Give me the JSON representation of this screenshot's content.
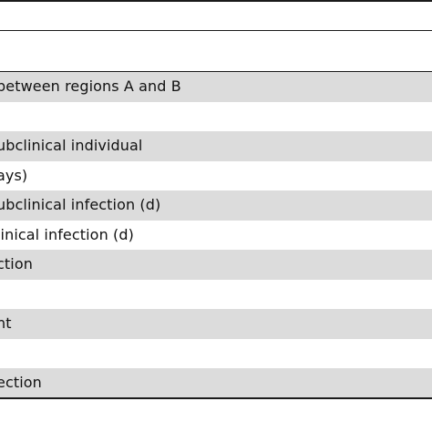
{
  "table": {
    "rows": [
      {
        "text": "between regions A and B",
        "shaded": true
      },
      {
        "text": "",
        "shaded": false
      },
      {
        "text": "ubclinical individual",
        "shaded": true
      },
      {
        "text": "ays)",
        "shaded": false
      },
      {
        "text": "ubclinical infection (d)",
        "shaded": true
      },
      {
        "text": "linical infection (d)",
        "shaded": false
      },
      {
        "text": "ction",
        "shaded": true
      },
      {
        "text": "",
        "shaded": false
      },
      {
        "text": "nt",
        "shaded": true
      },
      {
        "text": "",
        "shaded": false
      },
      {
        "text": "ection",
        "shaded": true
      }
    ]
  }
}
